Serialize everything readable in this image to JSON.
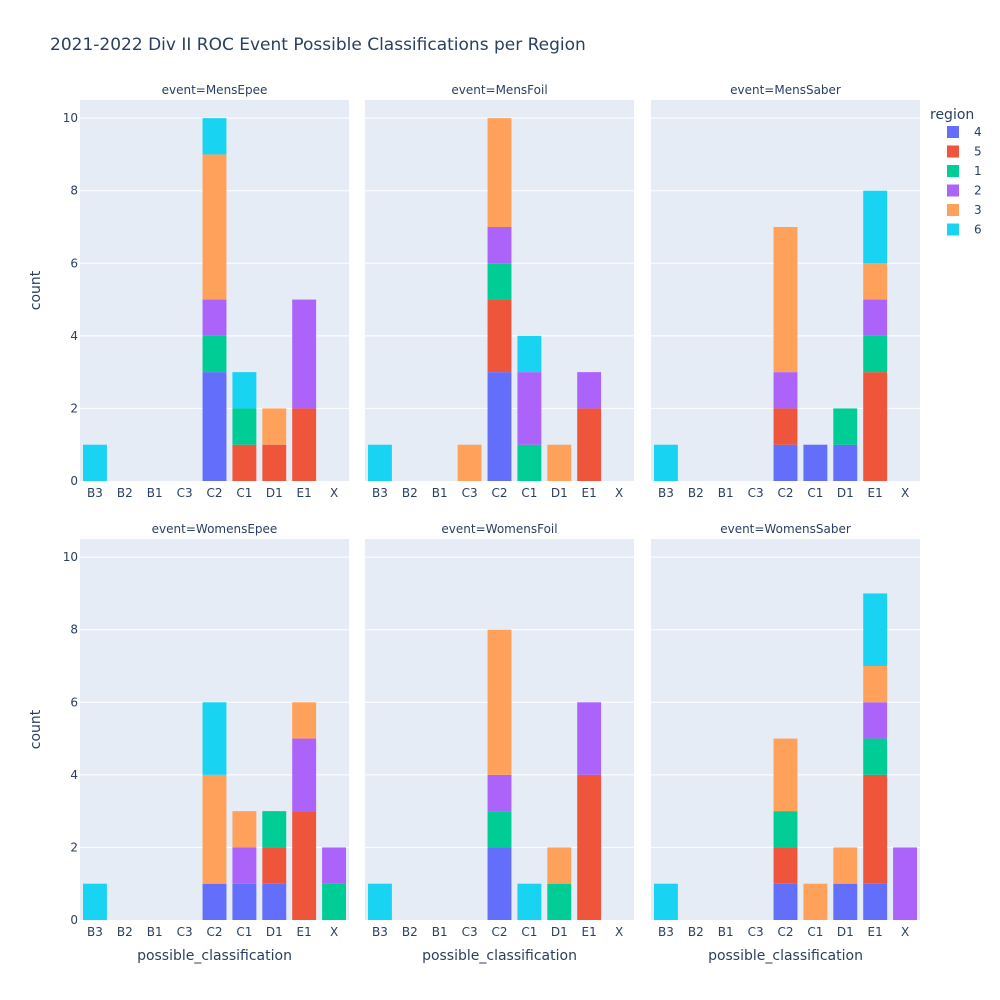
{
  "chart_data": {
    "type": "bar",
    "title": "2021-2022 Div II ROC Event Possible Classifications per Region",
    "xlabel": "possible_classification",
    "ylabel": "count",
    "ylim": [
      0,
      10.5
    ],
    "yticks": [
      0,
      2,
      4,
      6,
      8,
      10
    ],
    "grid": true,
    "barmode": "stack",
    "categories": [
      "B3",
      "B2",
      "B1",
      "C3",
      "C2",
      "C1",
      "D1",
      "E1",
      "X"
    ],
    "legend": {
      "title": "region",
      "placement": "top-right",
      "entries": [
        {
          "name": "4",
          "color": "#636EFA"
        },
        {
          "name": "5",
          "color": "#EF553B"
        },
        {
          "name": "1",
          "color": "#00CC96"
        },
        {
          "name": "2",
          "color": "#AB63FA"
        },
        {
          "name": "3",
          "color": "#FFA15A"
        },
        {
          "name": "6",
          "color": "#19D3F3"
        }
      ]
    },
    "facets": [
      {
        "title": "event=MensEpee",
        "series": [
          {
            "name": "4",
            "values": [
              0,
              0,
              0,
              0,
              3,
              0,
              0,
              0,
              0
            ]
          },
          {
            "name": "5",
            "values": [
              0,
              0,
              0,
              0,
              0,
              1,
              1,
              2,
              0
            ]
          },
          {
            "name": "1",
            "values": [
              0,
              0,
              0,
              0,
              1,
              1,
              0,
              0,
              0
            ]
          },
          {
            "name": "2",
            "values": [
              0,
              0,
              0,
              0,
              1,
              0,
              0,
              3,
              0
            ]
          },
          {
            "name": "3",
            "values": [
              0,
              0,
              0,
              0,
              4,
              0,
              1,
              0,
              0
            ]
          },
          {
            "name": "6",
            "values": [
              1,
              0,
              0,
              0,
              1,
              1,
              0,
              0,
              0
            ]
          }
        ]
      },
      {
        "title": "event=MensFoil",
        "series": [
          {
            "name": "4",
            "values": [
              0,
              0,
              0,
              0,
              3,
              0,
              0,
              0,
              0
            ]
          },
          {
            "name": "5",
            "values": [
              0,
              0,
              0,
              0,
              2,
              0,
              0,
              2,
              0
            ]
          },
          {
            "name": "1",
            "values": [
              0,
              0,
              0,
              0,
              1,
              1,
              0,
              0,
              0
            ]
          },
          {
            "name": "2",
            "values": [
              0,
              0,
              0,
              0,
              1,
              2,
              0,
              1,
              0
            ]
          },
          {
            "name": "3",
            "values": [
              0,
              0,
              0,
              1,
              3,
              0,
              1,
              0,
              0
            ]
          },
          {
            "name": "6",
            "values": [
              1,
              0,
              0,
              0,
              0,
              1,
              0,
              0,
              0
            ]
          }
        ]
      },
      {
        "title": "event=MensSaber",
        "series": [
          {
            "name": "4",
            "values": [
              0,
              0,
              0,
              0,
              1,
              1,
              1,
              0,
              0
            ]
          },
          {
            "name": "5",
            "values": [
              0,
              0,
              0,
              0,
              1,
              0,
              0,
              3,
              0
            ]
          },
          {
            "name": "1",
            "values": [
              0,
              0,
              0,
              0,
              0,
              0,
              1,
              1,
              0
            ]
          },
          {
            "name": "2",
            "values": [
              0,
              0,
              0,
              0,
              1,
              0,
              0,
              1,
              0
            ]
          },
          {
            "name": "3",
            "values": [
              0,
              0,
              0,
              0,
              4,
              0,
              0,
              1,
              0
            ]
          },
          {
            "name": "6",
            "values": [
              1,
              0,
              0,
              0,
              0,
              0,
              0,
              2,
              0
            ]
          }
        ]
      },
      {
        "title": "event=WomensEpee",
        "series": [
          {
            "name": "4",
            "values": [
              0,
              0,
              0,
              0,
              1,
              1,
              1,
              0,
              0
            ]
          },
          {
            "name": "5",
            "values": [
              0,
              0,
              0,
              0,
              0,
              0,
              1,
              3,
              0
            ]
          },
          {
            "name": "1",
            "values": [
              0,
              0,
              0,
              0,
              0,
              0,
              1,
              0,
              1
            ]
          },
          {
            "name": "2",
            "values": [
              0,
              0,
              0,
              0,
              0,
              1,
              0,
              2,
              1
            ]
          },
          {
            "name": "3",
            "values": [
              0,
              0,
              0,
              0,
              3,
              1,
              0,
              1,
              0
            ]
          },
          {
            "name": "6",
            "values": [
              1,
              0,
              0,
              0,
              2,
              0,
              0,
              0,
              0
            ]
          }
        ]
      },
      {
        "title": "event=WomensFoil",
        "series": [
          {
            "name": "4",
            "values": [
              0,
              0,
              0,
              0,
              2,
              0,
              0,
              0,
              0
            ]
          },
          {
            "name": "5",
            "values": [
              0,
              0,
              0,
              0,
              0,
              0,
              0,
              4,
              0
            ]
          },
          {
            "name": "1",
            "values": [
              0,
              0,
              0,
              0,
              1,
              0,
              1,
              0,
              0
            ]
          },
          {
            "name": "2",
            "values": [
              0,
              0,
              0,
              0,
              1,
              0,
              0,
              2,
              0
            ]
          },
          {
            "name": "3",
            "values": [
              0,
              0,
              0,
              0,
              4,
              0,
              1,
              0,
              0
            ]
          },
          {
            "name": "6",
            "values": [
              1,
              0,
              0,
              0,
              0,
              1,
              0,
              0,
              0
            ]
          }
        ]
      },
      {
        "title": "event=WomensSaber",
        "series": [
          {
            "name": "4",
            "values": [
              0,
              0,
              0,
              0,
              1,
              0,
              1,
              1,
              0
            ]
          },
          {
            "name": "5",
            "values": [
              0,
              0,
              0,
              0,
              1,
              0,
              0,
              3,
              0
            ]
          },
          {
            "name": "1",
            "values": [
              0,
              0,
              0,
              0,
              1,
              0,
              0,
              1,
              0
            ]
          },
          {
            "name": "2",
            "values": [
              0,
              0,
              0,
              0,
              0,
              0,
              0,
              1,
              2
            ]
          },
          {
            "name": "3",
            "values": [
              0,
              0,
              0,
              0,
              2,
              1,
              1,
              1,
              0
            ]
          },
          {
            "name": "6",
            "values": [
              1,
              0,
              0,
              0,
              0,
              0,
              0,
              2,
              0
            ]
          }
        ]
      }
    ]
  }
}
